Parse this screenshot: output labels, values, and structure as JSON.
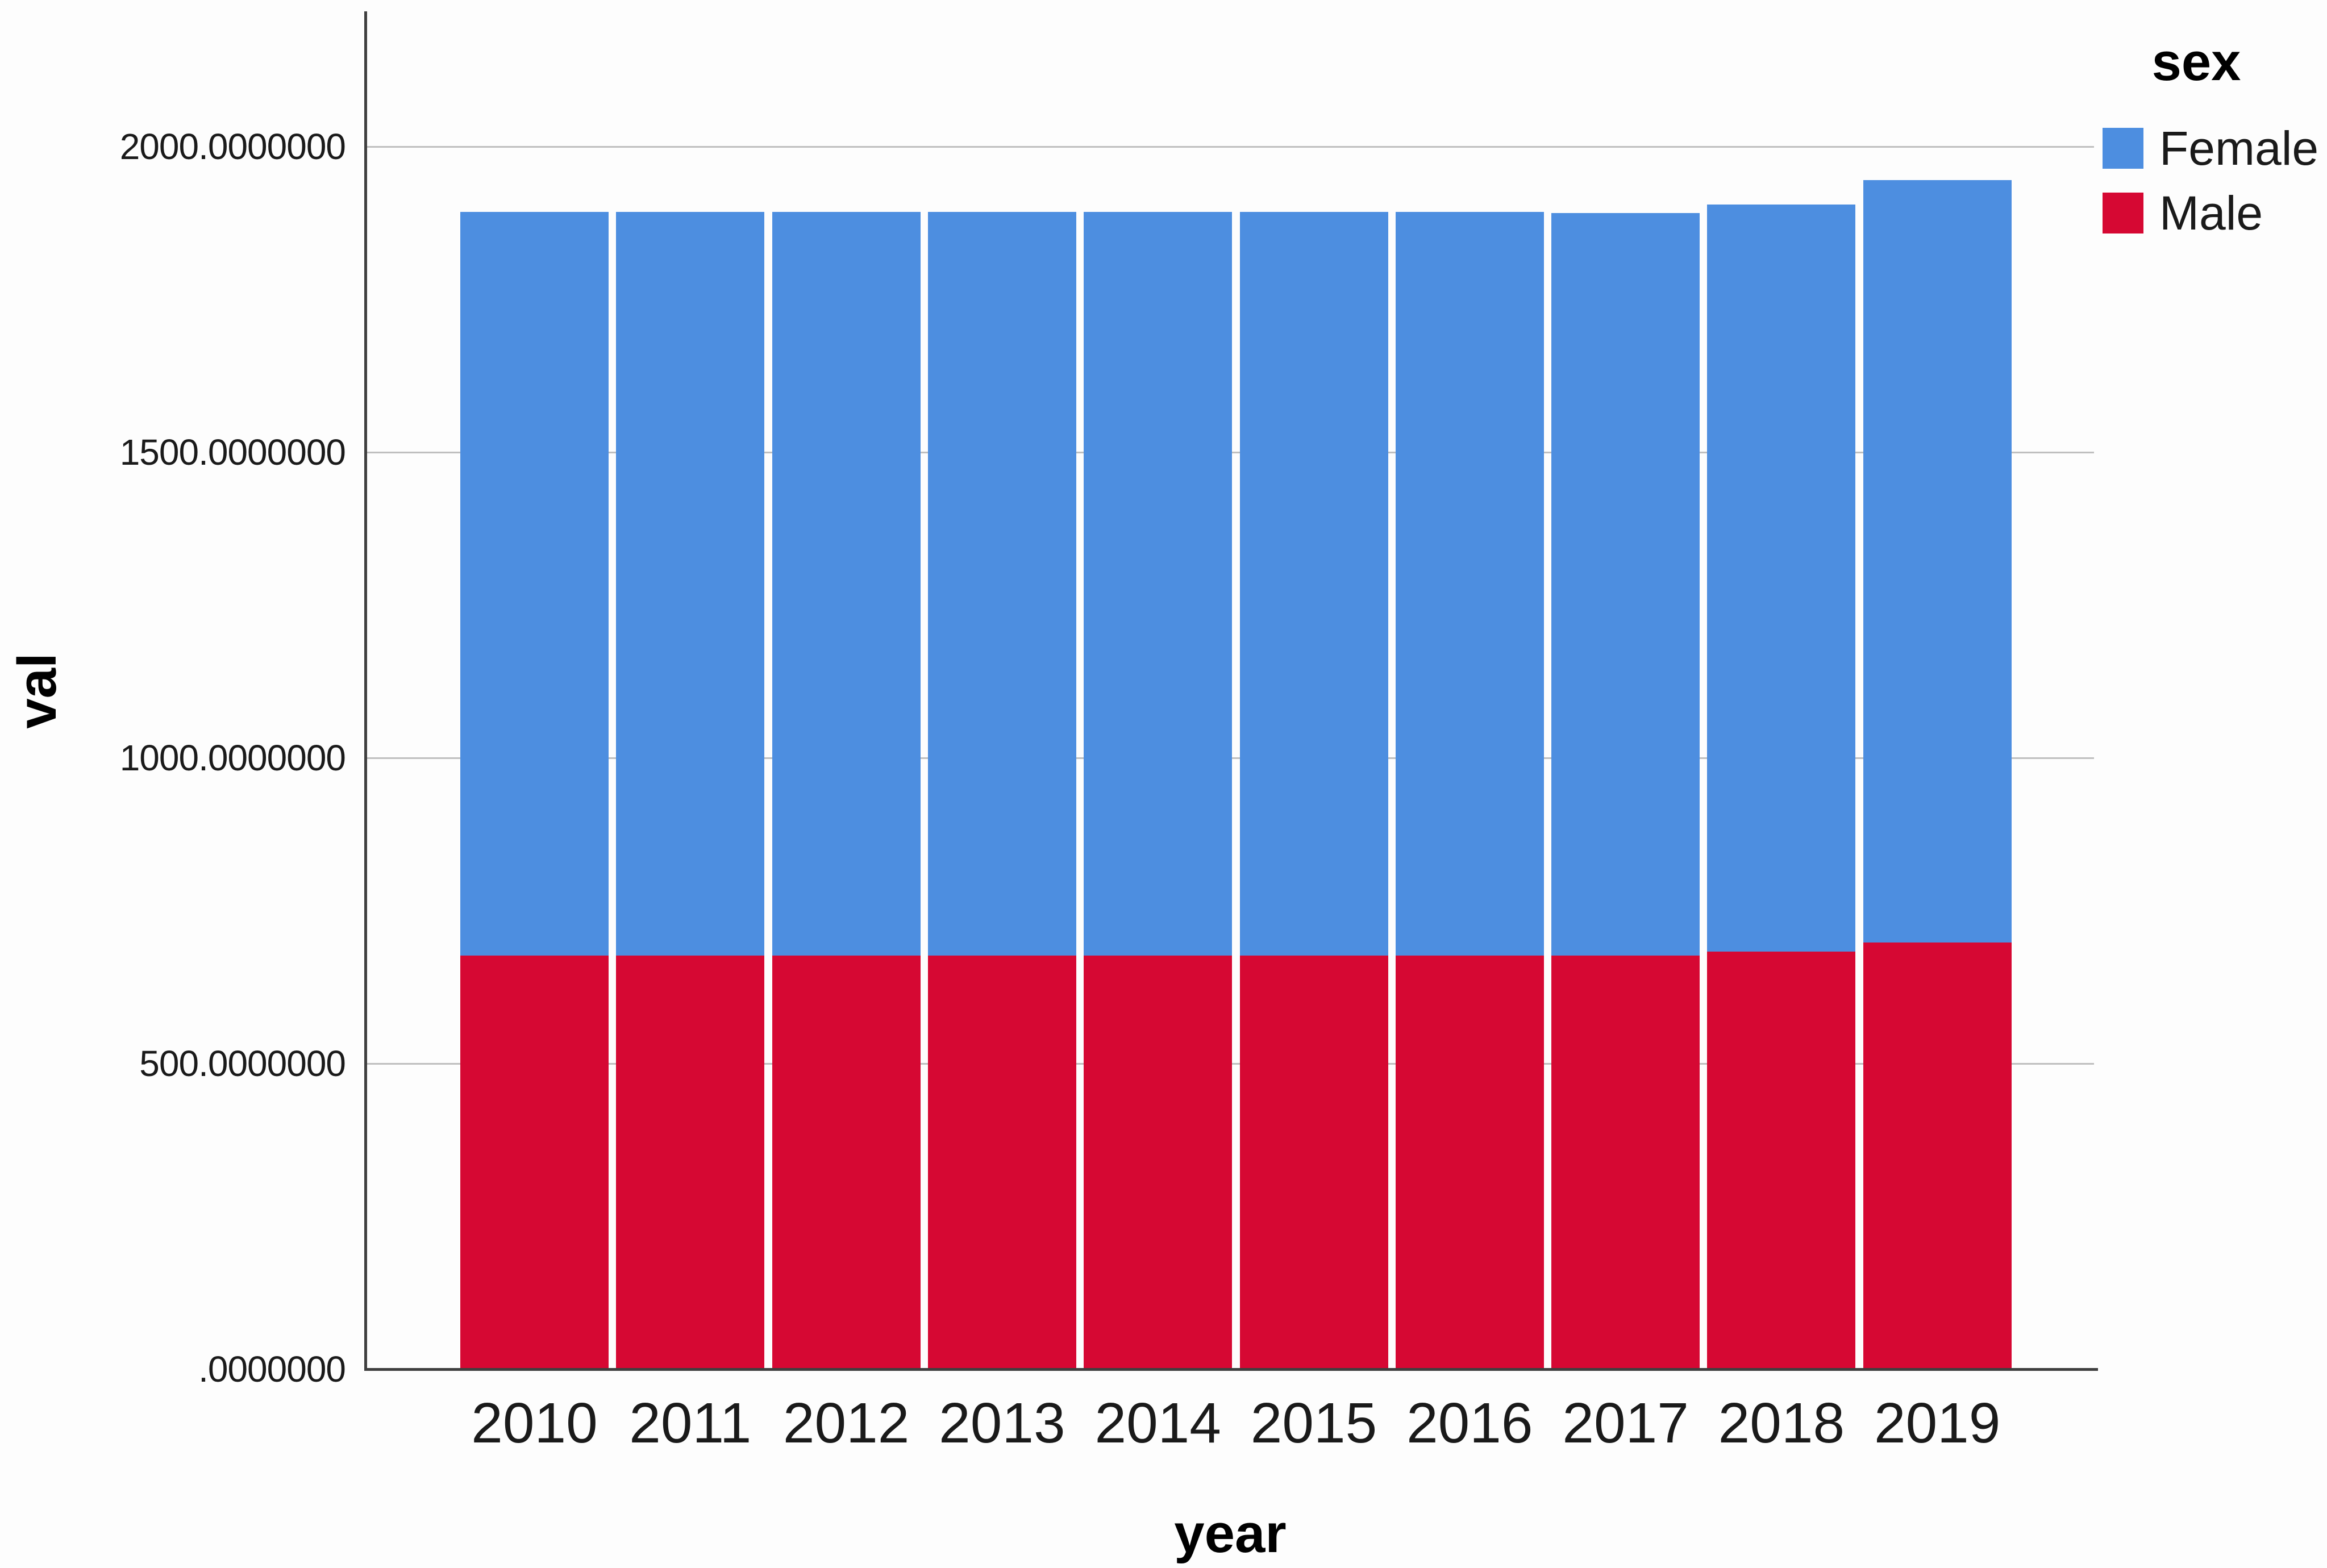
{
  "chart_data": {
    "type": "bar",
    "stacked": true,
    "title": "",
    "xlabel": "year",
    "ylabel": "val",
    "categories": [
      "2010",
      "2011",
      "2012",
      "2013",
      "2014",
      "2015",
      "2016",
      "2017",
      "2018",
      "2019"
    ],
    "series": [
      {
        "name": "Male",
        "color": "#D60833",
        "values": [
          677,
          677,
          677,
          677,
          677,
          677,
          677,
          677,
          683,
          698
        ]
      },
      {
        "name": "Female",
        "color": "#4D8EE0",
        "values": [
          1216,
          1216,
          1216,
          1216,
          1216,
          1216,
          1216,
          1214,
          1222,
          1247
        ]
      }
    ],
    "stack_totals": [
      1893,
      1893,
      1893,
      1893,
      1893,
      1893,
      1893,
      1891,
      1905,
      1945
    ],
    "ylim": [
      0,
      2000
    ],
    "yticks": [
      {
        "value": 0,
        "label": ".0000000"
      },
      {
        "value": 500,
        "label": "500.0000000"
      },
      {
        "value": 1000,
        "label": "1000.0000000"
      },
      {
        "value": 1500,
        "label": "1500.0000000"
      },
      {
        "value": 2000,
        "label": "2000.0000000"
      }
    ],
    "grid": true,
    "legend": {
      "title": "sex",
      "position": "top-right",
      "entries": [
        {
          "label": "Female",
          "color": "#4D8EE0"
        },
        {
          "label": "Male",
          "color": "#D60833"
        }
      ]
    }
  },
  "colors": {
    "female_blue": "#4D8EE0",
    "male_red": "#D60833",
    "gridline": "#BFBFBF",
    "axis": "#3F3F3F",
    "text": "#1A1A1A"
  }
}
